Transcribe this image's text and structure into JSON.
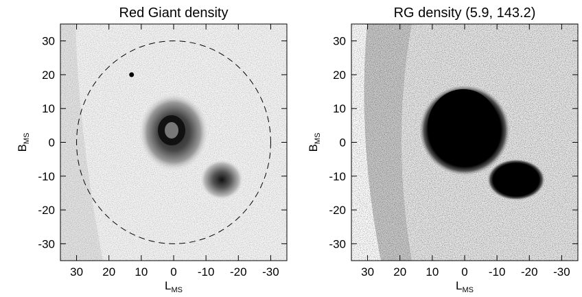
{
  "chart_data": [
    {
      "type": "density",
      "title": "Red Giant density",
      "xlabel": "L",
      "xlabel_sub": "MS",
      "ylabel": "B",
      "ylabel_sub": "MS",
      "xlim": [
        35,
        -35
      ],
      "ylim": [
        -35,
        35
      ],
      "xticks": [
        30,
        20,
        10,
        0,
        -10,
        -20,
        -30
      ],
      "yticks": [
        30,
        20,
        10,
        0,
        -10,
        -20,
        -30
      ],
      "circle_radius": 30,
      "marker": {
        "x": 13,
        "y": 20
      }
    },
    {
      "type": "density",
      "title": "RG density (5.9, 143.2)",
      "xlabel": "L",
      "xlabel_sub": "MS",
      "ylabel": "B",
      "ylabel_sub": "MS",
      "xlim": [
        35,
        -35
      ],
      "ylim": [
        -35,
        35
      ],
      "xticks": [
        30,
        20,
        10,
        0,
        -10,
        -20,
        -30
      ],
      "yticks": [
        30,
        20,
        10,
        0,
        -10,
        -20,
        -30
      ]
    }
  ]
}
